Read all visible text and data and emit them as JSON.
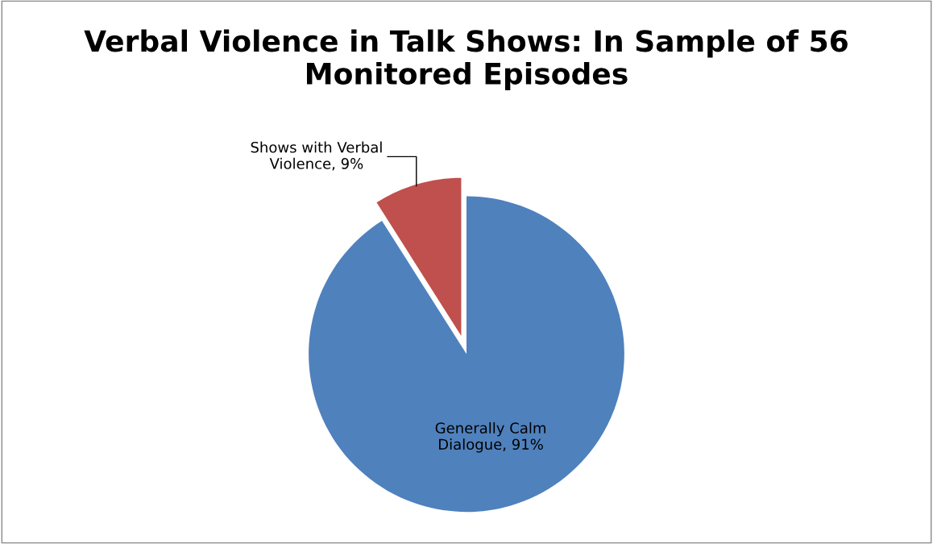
{
  "chart_data": {
    "type": "pie",
    "title": "Verbal Violence in Talk Shows: In Sample of 56 Monitored Episodes",
    "categories": [
      "Shows with Verbal Violence",
      "Generally Calm Dialogue"
    ],
    "values": [
      9,
      91
    ],
    "colors": [
      "#c0504d",
      "#4f81bd"
    ],
    "value_labels": [
      "9%",
      "91%"
    ],
    "legend": false
  }
}
